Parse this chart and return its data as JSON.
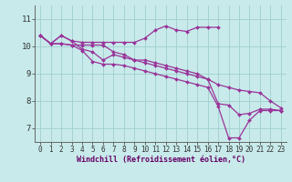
{
  "bg_color": "#c8eaea",
  "grid_color": "#a0cece",
  "line_color": "#993399",
  "marker_color": "#993399",
  "xlabel": "Windchill (Refroidissement éolien,°C)",
  "xlabel_fontsize": 6.0,
  "tick_fontsize": 5.5,
  "ytick_fontsize": 6.5,
  "ylabel_ticks": [
    7,
    8,
    9,
    10,
    11
  ],
  "xlim": [
    -0.5,
    23.5
  ],
  "ylim": [
    6.5,
    11.5
  ],
  "series": [
    [
      10.4,
      10.1,
      10.4,
      10.2,
      10.15,
      10.15,
      10.15,
      10.15,
      10.15,
      10.15,
      10.3,
      10.6,
      10.75,
      10.6,
      10.55,
      10.7,
      10.7,
      10.7,
      null,
      null,
      null,
      null,
      null,
      null
    ],
    [
      10.4,
      10.1,
      10.4,
      10.2,
      9.9,
      9.8,
      9.5,
      9.7,
      9.6,
      9.5,
      9.5,
      9.4,
      9.3,
      9.2,
      9.1,
      9.0,
      8.8,
      7.9,
      7.85,
      7.5,
      7.55,
      7.7,
      7.7,
      7.65
    ],
    [
      10.4,
      10.1,
      10.1,
      10.05,
      9.85,
      9.45,
      9.35,
      9.35,
      9.3,
      9.2,
      9.1,
      9.0,
      8.9,
      8.8,
      8.7,
      8.6,
      8.5,
      7.8,
      6.65,
      6.65,
      7.3,
      7.65,
      7.65,
      7.65
    ],
    [
      10.4,
      10.1,
      10.1,
      10.05,
      10.05,
      10.05,
      10.05,
      9.8,
      9.7,
      9.5,
      9.4,
      9.3,
      9.2,
      9.1,
      9.0,
      8.9,
      8.8,
      8.6,
      8.5,
      8.4,
      8.35,
      8.3,
      8.0,
      7.75
    ]
  ]
}
